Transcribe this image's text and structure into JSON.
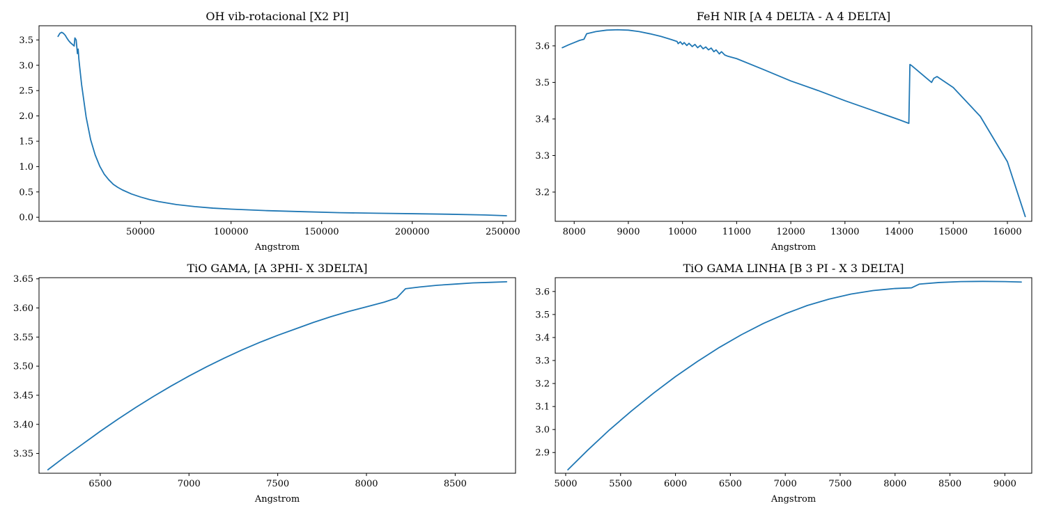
{
  "colors": {
    "series": "#1f77b4"
  },
  "chart_data": [
    {
      "type": "line",
      "title": "OH vib-rotacional [X2 PI]",
      "xlabel": "Angstrom",
      "ylabel": "",
      "xlim": [
        -6000,
        257000
      ],
      "ylim": [
        -0.08,
        3.78
      ],
      "xticks": [
        50000,
        100000,
        150000,
        200000,
        250000
      ],
      "yticks": [
        0.0,
        0.5,
        1.0,
        1.5,
        2.0,
        2.5,
        3.0,
        3.5
      ],
      "tick_decimals": 1,
      "series": [
        {
          "x": [
            4500,
            5500,
            6500,
            7500,
            8500,
            9500,
            10500,
            11500,
            12500,
            13400,
            13800,
            14500,
            15200,
            15600,
            16000,
            16500,
            17500,
            20000,
            22500,
            25000,
            27500,
            30000,
            32500,
            35000,
            37500,
            40000,
            45000,
            50000,
            55000,
            60000,
            70000,
            80000,
            90000,
            100000,
            120000,
            140000,
            160000,
            180000,
            200000,
            220000,
            240000,
            252000
          ],
          "y": [
            3.57,
            3.63,
            3.65,
            3.63,
            3.59,
            3.53,
            3.48,
            3.44,
            3.41,
            3.38,
            3.54,
            3.5,
            3.23,
            3.32,
            3.12,
            2.95,
            2.62,
            1.98,
            1.53,
            1.23,
            1.01,
            0.85,
            0.74,
            0.65,
            0.59,
            0.54,
            0.46,
            0.4,
            0.35,
            0.31,
            0.25,
            0.21,
            0.18,
            0.16,
            0.13,
            0.11,
            0.09,
            0.08,
            0.07,
            0.06,
            0.045,
            0.03
          ]
        }
      ]
    },
    {
      "type": "line",
      "title": "FeH NIR [A 4 DELTA - A 4 DELTA]",
      "xlabel": "Angstrom",
      "ylabel": "",
      "xlim": [
        7650,
        16450
      ],
      "ylim": [
        3.12,
        3.655
      ],
      "xticks": [
        8000,
        9000,
        10000,
        11000,
        12000,
        13000,
        14000,
        15000,
        16000
      ],
      "yticks": [
        3.2,
        3.3,
        3.4,
        3.5,
        3.6
      ],
      "tick_decimals": 1,
      "series": [
        {
          "x": [
            7780,
            7900,
            8000,
            8100,
            8180,
            8230,
            8400,
            8600,
            8800,
            9000,
            9200,
            9400,
            9600,
            9800,
            9900,
            9920,
            9960,
            10000,
            10030,
            10080,
            10120,
            10180,
            10230,
            10280,
            10330,
            10380,
            10430,
            10480,
            10530,
            10580,
            10620,
            10680,
            10720,
            10780,
            10830,
            11000,
            11500,
            12000,
            12500,
            13000,
            13500,
            14000,
            14180,
            14200,
            14240,
            14600,
            14640,
            14700,
            15000,
            15500,
            16000,
            16330
          ],
          "y": [
            3.595,
            3.603,
            3.609,
            3.615,
            3.618,
            3.633,
            3.639,
            3.643,
            3.644,
            3.643,
            3.639,
            3.633,
            3.626,
            3.617,
            3.612,
            3.606,
            3.611,
            3.604,
            3.609,
            3.601,
            3.607,
            3.598,
            3.604,
            3.595,
            3.601,
            3.592,
            3.597,
            3.589,
            3.594,
            3.584,
            3.589,
            3.578,
            3.584,
            3.575,
            3.572,
            3.565,
            3.535,
            3.504,
            3.478,
            3.45,
            3.424,
            3.398,
            3.388,
            3.549,
            3.545,
            3.5,
            3.511,
            3.516,
            3.486,
            3.407,
            3.283,
            3.133
          ]
        }
      ]
    },
    {
      "type": "line",
      "title": "TiO GAMA, [A 3PHI- X 3DELTA]",
      "xlabel": "Angstrom",
      "ylabel": "",
      "xlim": [
        6155,
        8840
      ],
      "ylim": [
        3.316,
        3.652
      ],
      "xticks": [
        6500,
        7000,
        7500,
        8000,
        8500
      ],
      "yticks": [
        3.35,
        3.4,
        3.45,
        3.5,
        3.55,
        3.6,
        3.65
      ],
      "tick_decimals": 2,
      "series": [
        {
          "x": [
            6205,
            6300,
            6400,
            6500,
            6600,
            6700,
            6800,
            6900,
            7000,
            7100,
            7200,
            7300,
            7400,
            7500,
            7600,
            7700,
            7800,
            7900,
            8000,
            8100,
            8170,
            8220,
            8300,
            8400,
            8500,
            8600,
            8700,
            8790
          ],
          "y": [
            3.322,
            3.344,
            3.366,
            3.388,
            3.409,
            3.429,
            3.448,
            3.466,
            3.483,
            3.499,
            3.514,
            3.528,
            3.541,
            3.553,
            3.564,
            3.575,
            3.585,
            3.594,
            3.602,
            3.61,
            3.617,
            3.633,
            3.636,
            3.639,
            3.641,
            3.643,
            3.644,
            3.645
          ]
        }
      ]
    },
    {
      "type": "line",
      "title": "TiO GAMA LINHA [B 3 PI - X 3 DELTA]",
      "xlabel": "Angstrom",
      "ylabel": "",
      "xlim": [
        4905,
        9245
      ],
      "ylim": [
        2.81,
        3.66
      ],
      "xticks": [
        5000,
        5500,
        6000,
        6500,
        7000,
        7500,
        8000,
        8500,
        9000
      ],
      "yticks": [
        2.9,
        3.0,
        3.1,
        3.2,
        3.3,
        3.4,
        3.5,
        3.6
      ],
      "tick_decimals": 1,
      "series": [
        {
          "x": [
            5020,
            5200,
            5400,
            5600,
            5800,
            6000,
            6200,
            6400,
            6600,
            6800,
            7000,
            7200,
            7400,
            7600,
            7800,
            8000,
            8150,
            8220,
            8400,
            8600,
            8800,
            9000,
            9150
          ],
          "y": [
            2.825,
            2.91,
            2.999,
            3.081,
            3.158,
            3.23,
            3.296,
            3.357,
            3.412,
            3.461,
            3.503,
            3.539,
            3.567,
            3.589,
            3.604,
            3.613,
            3.616,
            3.632,
            3.639,
            3.643,
            3.644,
            3.643,
            3.641
          ]
        }
      ]
    }
  ]
}
